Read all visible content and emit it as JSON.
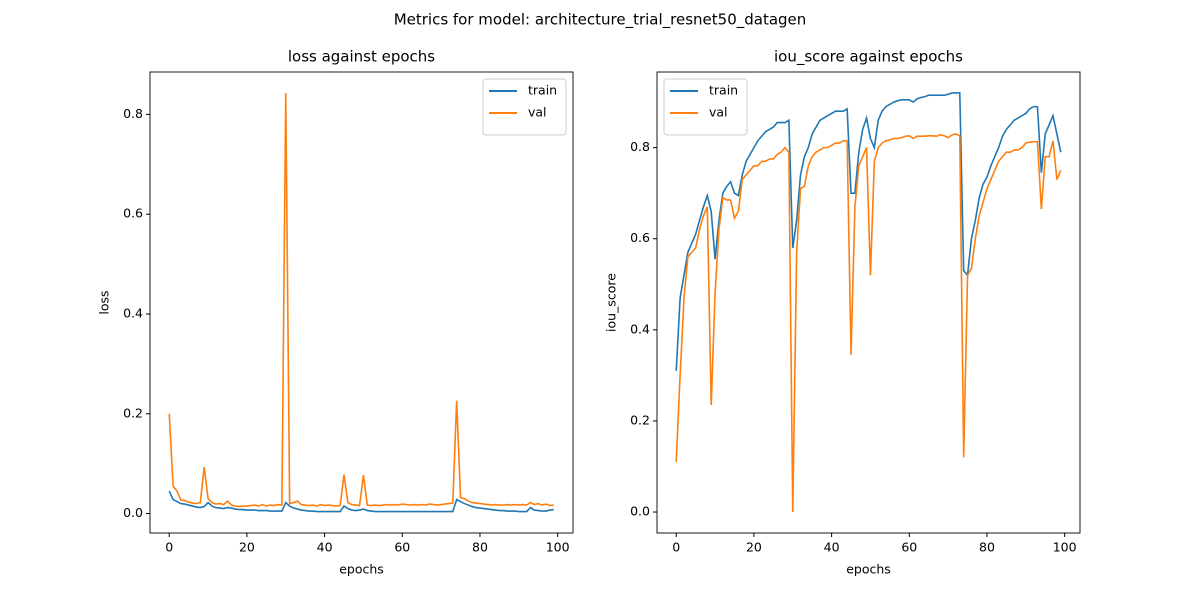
{
  "title": "Metrics for model: architecture_trial_resnet50_datagen",
  "chart_data": [
    {
      "type": "line",
      "title": "loss against epochs",
      "x_label": "epochs",
      "y_label": "loss",
      "x": [
        0,
        1,
        2,
        3,
        4,
        5,
        6,
        7,
        8,
        9,
        10,
        11,
        12,
        13,
        14,
        15,
        16,
        17,
        18,
        19,
        20,
        21,
        22,
        23,
        24,
        25,
        26,
        27,
        28,
        29,
        30,
        31,
        32,
        33,
        34,
        35,
        36,
        37,
        38,
        39,
        40,
        41,
        42,
        43,
        44,
        45,
        46,
        47,
        48,
        49,
        50,
        51,
        52,
        53,
        54,
        55,
        56,
        57,
        58,
        59,
        60,
        61,
        62,
        63,
        64,
        65,
        66,
        67,
        68,
        69,
        70,
        71,
        72,
        73,
        74,
        75,
        76,
        77,
        78,
        79,
        80,
        81,
        82,
        83,
        84,
        85,
        86,
        87,
        88,
        89,
        90,
        91,
        92,
        93,
        94,
        95,
        96,
        97,
        98,
        99
      ],
      "series": [
        {
          "name": "train",
          "color": "#1f77b4",
          "values": [
            0.045,
            0.028,
            0.024,
            0.02,
            0.019,
            0.017,
            0.015,
            0.013,
            0.012,
            0.014,
            0.022,
            0.015,
            0.012,
            0.011,
            0.01,
            0.012,
            0.011,
            0.009,
            0.008,
            0.008,
            0.007,
            0.007,
            0.007,
            0.006,
            0.006,
            0.006,
            0.005,
            0.005,
            0.005,
            0.005,
            0.022,
            0.015,
            0.011,
            0.009,
            0.007,
            0.006,
            0.005,
            0.005,
            0.004,
            0.004,
            0.004,
            0.004,
            0.004,
            0.004,
            0.004,
            0.015,
            0.01,
            0.007,
            0.006,
            0.007,
            0.009,
            0.006,
            0.005,
            0.004,
            0.004,
            0.004,
            0.004,
            0.004,
            0.004,
            0.004,
            0.004,
            0.004,
            0.004,
            0.004,
            0.004,
            0.004,
            0.004,
            0.004,
            0.004,
            0.004,
            0.004,
            0.004,
            0.004,
            0.004,
            0.028,
            0.024,
            0.02,
            0.017,
            0.014,
            0.012,
            0.011,
            0.01,
            0.009,
            0.008,
            0.007,
            0.006,
            0.006,
            0.005,
            0.005,
            0.005,
            0.004,
            0.004,
            0.004,
            0.012,
            0.007,
            0.006,
            0.005,
            0.005,
            0.007,
            0.008
          ]
        },
        {
          "name": "val",
          "color": "#ff7f0e",
          "values": [
            0.2,
            0.055,
            0.045,
            0.027,
            0.026,
            0.023,
            0.021,
            0.02,
            0.022,
            0.093,
            0.03,
            0.022,
            0.019,
            0.02,
            0.018,
            0.025,
            0.017,
            0.015,
            0.014,
            0.015,
            0.015,
            0.016,
            0.017,
            0.015,
            0.018,
            0.015,
            0.017,
            0.016,
            0.018,
            0.017,
            0.843,
            0.02,
            0.022,
            0.025,
            0.018,
            0.017,
            0.016,
            0.017,
            0.015,
            0.018,
            0.016,
            0.017,
            0.016,
            0.015,
            0.016,
            0.078,
            0.022,
            0.018,
            0.017,
            0.016,
            0.077,
            0.017,
            0.016,
            0.017,
            0.016,
            0.017,
            0.018,
            0.017,
            0.018,
            0.017,
            0.019,
            0.018,
            0.017,
            0.018,
            0.017,
            0.018,
            0.017,
            0.019,
            0.018,
            0.017,
            0.018,
            0.019,
            0.02,
            0.021,
            0.226,
            0.032,
            0.03,
            0.025,
            0.022,
            0.021,
            0.02,
            0.019,
            0.018,
            0.017,
            0.018,
            0.017,
            0.017,
            0.018,
            0.017,
            0.018,
            0.017,
            0.018,
            0.017,
            0.022,
            0.018,
            0.02,
            0.017,
            0.019,
            0.016,
            0.017
          ]
        }
      ],
      "xlim": [
        -4.95,
        103.95
      ],
      "xticks": [
        0,
        20,
        40,
        60,
        80,
        100
      ],
      "ylim": [
        -0.039,
        0.885
      ],
      "yticks": [
        {
          "value": 0,
          "label": "0.0"
        },
        0.2,
        0.4,
        0.6,
        0.8
      ],
      "grid": false,
      "legend": "upper right"
    },
    {
      "type": "line",
      "title": "iou_score against epochs",
      "x_label": "epochs",
      "y_label": "iou_score",
      "x": [
        0,
        1,
        2,
        3,
        4,
        5,
        6,
        7,
        8,
        9,
        10,
        11,
        12,
        13,
        14,
        15,
        16,
        17,
        18,
        19,
        20,
        21,
        22,
        23,
        24,
        25,
        26,
        27,
        28,
        29,
        30,
        31,
        32,
        33,
        34,
        35,
        36,
        37,
        38,
        39,
        40,
        41,
        42,
        43,
        44,
        45,
        46,
        47,
        48,
        49,
        50,
        51,
        52,
        53,
        54,
        55,
        56,
        57,
        58,
        59,
        60,
        61,
        62,
        63,
        64,
        65,
        66,
        67,
        68,
        69,
        70,
        71,
        72,
        73,
        74,
        75,
        76,
        77,
        78,
        79,
        80,
        81,
        82,
        83,
        84,
        85,
        86,
        87,
        88,
        89,
        90,
        91,
        92,
        93,
        94,
        95,
        96,
        97,
        98,
        99
      ],
      "series": [
        {
          "name": "train",
          "color": "#1f77b4",
          "values": [
            0.31,
            0.47,
            0.52,
            0.57,
            0.59,
            0.61,
            0.64,
            0.67,
            0.695,
            0.66,
            0.555,
            0.64,
            0.7,
            0.715,
            0.725,
            0.7,
            0.695,
            0.74,
            0.77,
            0.785,
            0.8,
            0.815,
            0.825,
            0.835,
            0.84,
            0.845,
            0.855,
            0.855,
            0.855,
            0.86,
            0.58,
            0.64,
            0.74,
            0.78,
            0.8,
            0.83,
            0.845,
            0.86,
            0.865,
            0.87,
            0.875,
            0.88,
            0.88,
            0.88,
            0.885,
            0.7,
            0.7,
            0.79,
            0.84,
            0.865,
            0.82,
            0.8,
            0.86,
            0.88,
            0.89,
            0.895,
            0.9,
            0.903,
            0.905,
            0.905,
            0.905,
            0.9,
            0.907,
            0.91,
            0.912,
            0.915,
            0.915,
            0.915,
            0.915,
            0.915,
            0.917,
            0.92,
            0.92,
            0.92,
            0.53,
            0.52,
            0.6,
            0.64,
            0.69,
            0.72,
            0.735,
            0.76,
            0.78,
            0.8,
            0.825,
            0.84,
            0.85,
            0.86,
            0.865,
            0.87,
            0.875,
            0.885,
            0.89,
            0.89,
            0.745,
            0.83,
            0.85,
            0.87,
            0.83,
            0.79
          ]
        },
        {
          "name": "val",
          "color": "#ff7f0e",
          "values": [
            0.11,
            0.3,
            0.47,
            0.56,
            0.57,
            0.58,
            0.62,
            0.65,
            0.67,
            0.235,
            0.48,
            0.62,
            0.69,
            0.685,
            0.685,
            0.645,
            0.66,
            0.73,
            0.74,
            0.75,
            0.76,
            0.76,
            0.77,
            0.77,
            0.775,
            0.775,
            0.785,
            0.79,
            0.8,
            0.79,
            0.0,
            0.57,
            0.71,
            0.715,
            0.76,
            0.78,
            0.79,
            0.795,
            0.8,
            0.8,
            0.805,
            0.81,
            0.81,
            0.815,
            0.815,
            0.345,
            0.67,
            0.76,
            0.78,
            0.8,
            0.52,
            0.77,
            0.8,
            0.81,
            0.815,
            0.817,
            0.82,
            0.82,
            0.822,
            0.825,
            0.826,
            0.82,
            0.825,
            0.825,
            0.825,
            0.826,
            0.826,
            0.825,
            0.828,
            0.826,
            0.822,
            0.828,
            0.83,
            0.826,
            0.12,
            0.52,
            0.535,
            0.6,
            0.65,
            0.68,
            0.71,
            0.73,
            0.75,
            0.77,
            0.78,
            0.79,
            0.79,
            0.795,
            0.795,
            0.8,
            0.81,
            0.812,
            0.813,
            0.813,
            0.665,
            0.78,
            0.78,
            0.815,
            0.73,
            0.75
          ]
        }
      ],
      "xlim": [
        -4.95,
        103.95
      ],
      "xticks": [
        0,
        20,
        40,
        60,
        80,
        100
      ],
      "ylim": [
        -0.046,
        0.966
      ],
      "yticks": [
        {
          "value": 0,
          "label": "0.0"
        },
        0.2,
        0.4,
        0.6,
        0.8
      ],
      "grid": false,
      "legend": "upper left"
    }
  ]
}
